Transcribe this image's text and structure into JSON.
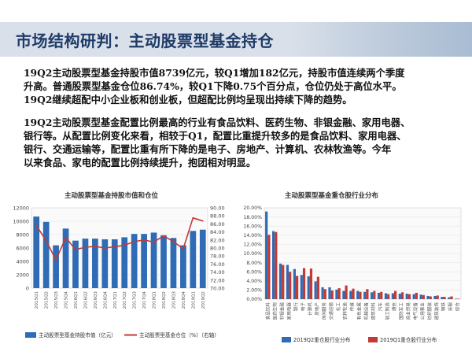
{
  "header": {
    "title": "市场结构研判：主动股票型基金持仓"
  },
  "paragraphs": [
    {
      "lines": [
        "19Q2主动股票型基金持股市值8739亿元，较Q1增加182亿元，持股市值连续两个季度",
        "升高。普通股票型基金仓位86.74%，较Q1下降0.75个百分点，仓位仍处于高位水平。",
        "19Q2继续超配中小企业板和创业板，但超配比例均呈现出持续下降的趋势。"
      ]
    },
    {
      "lines": [
        "19Q2主动股票型基金配置比例最高的行业有食品饮料、医药生物、非银金融、家用电器、",
        "银行等。从配置比例变化来看，相较于Q1，配置比重提升较多的是食品饮料、家用电器、",
        "银行、交通运输等，配置比重有所下降的是电子、房地产、计算机、农林牧渔等。今年",
        "以来食品、家电的配置比例持续提升，抱团相对明显。"
      ]
    }
  ],
  "chart_data": [
    {
      "type": "bar",
      "title": "主动股票型基金持股市值和仓位",
      "categories": [
        "2015Q1",
        "2015Q2",
        "2015Q3",
        "2015Q4",
        "2016Q1",
        "2016Q2",
        "2016Q3",
        "2016Q4",
        "2017Q1",
        "2017Q2",
        "2017Q3",
        "2017Q4",
        "2018Q1",
        "2018Q2",
        "2018Q3",
        "2018Q4",
        "2019Q1",
        "2019Q2"
      ],
      "series": [
        {
          "name": "主动股票型基金持股市值（亿元）",
          "type": "bar",
          "axis": "left",
          "color": "#2f6cb5",
          "values": [
            10700,
            9900,
            6400,
            8900,
            7100,
            7400,
            7400,
            7300,
            7300,
            7600,
            8100,
            8100,
            8300,
            7900,
            7500,
            6400,
            8550,
            8739
          ]
        },
        {
          "name": "主动股票型基金仓位（%）（右轴）",
          "type": "line",
          "axis": "right",
          "color": "#c23a34",
          "values": [
            85.6,
            81.8,
            77.0,
            82.6,
            79.6,
            80.2,
            80.4,
            80.0,
            80.3,
            80.7,
            81.6,
            82.0,
            81.5,
            83.0,
            81.6,
            79.8,
            87.49,
            86.74
          ]
        }
      ],
      "ylim_left": [
        0,
        12000
      ],
      "yticks_left": [
        "0",
        "2000",
        "4000",
        "6000",
        "8000",
        "10000",
        "12000"
      ],
      "ylim_right": [
        70,
        90
      ],
      "yticks_right": [
        "70.00",
        "72.00",
        "74.00",
        "76.00",
        "78.00",
        "80.00",
        "82.00",
        "84.00",
        "86.00",
        "88.00",
        "90.00"
      ],
      "legend_position": "bottom"
    },
    {
      "type": "bar",
      "title": "主动股票型基金重仓股行业分布",
      "categories": [
        "食品饮料",
        "医药生物",
        "非银金融",
        "家用电器",
        "银行",
        "电子",
        "计算机",
        "房地产",
        "休闲服务",
        "交通运输",
        "化工",
        "农林牧渔",
        "传媒",
        "有色金属",
        "机械设备",
        "建筑材料",
        "汽车",
        "轻工制造",
        "通信",
        "国防军工",
        "商业贸易",
        "电气设备",
        "公用事业",
        "纺织服装",
        "建筑装饰",
        "钢铁",
        "采掘",
        "综合"
      ],
      "series": [
        {
          "name": "2019Q2重仓股行业分布",
          "color": "#2f6cb5",
          "values": [
            19.2,
            14.9,
            7.8,
            7.5,
            6.6,
            5.3,
            5.0,
            3.9,
            2.6,
            2.6,
            2.1,
            1.8,
            1.8,
            1.8,
            1.6,
            1.5,
            1.4,
            1.3,
            1.3,
            1.2,
            1.2,
            1.1,
            1.0,
            0.7,
            0.7,
            0.5,
            0.4,
            0.1
          ]
        },
        {
          "name": "2019Q1重仓股行业分布",
          "color": "#c23a34",
          "values": [
            14.1,
            14.7,
            7.5,
            6.0,
            5.1,
            6.8,
            6.7,
            4.9,
            2.2,
            1.9,
            2.4,
            3.0,
            2.3,
            1.6,
            2.2,
            1.8,
            1.6,
            1.1,
            1.8,
            1.5,
            1.1,
            1.4,
            0.9,
            0.6,
            0.8,
            0.5,
            0.6,
            0.1
          ]
        }
      ],
      "ylim": [
        0,
        20
      ],
      "yticks": [
        "0.00%",
        "2.00%",
        "4.00%",
        "6.00%",
        "8.00%",
        "10.00%",
        "12.00%",
        "14.00%",
        "16.00%",
        "18.00%",
        "20.00%"
      ],
      "legend_position": "bottom"
    }
  ]
}
